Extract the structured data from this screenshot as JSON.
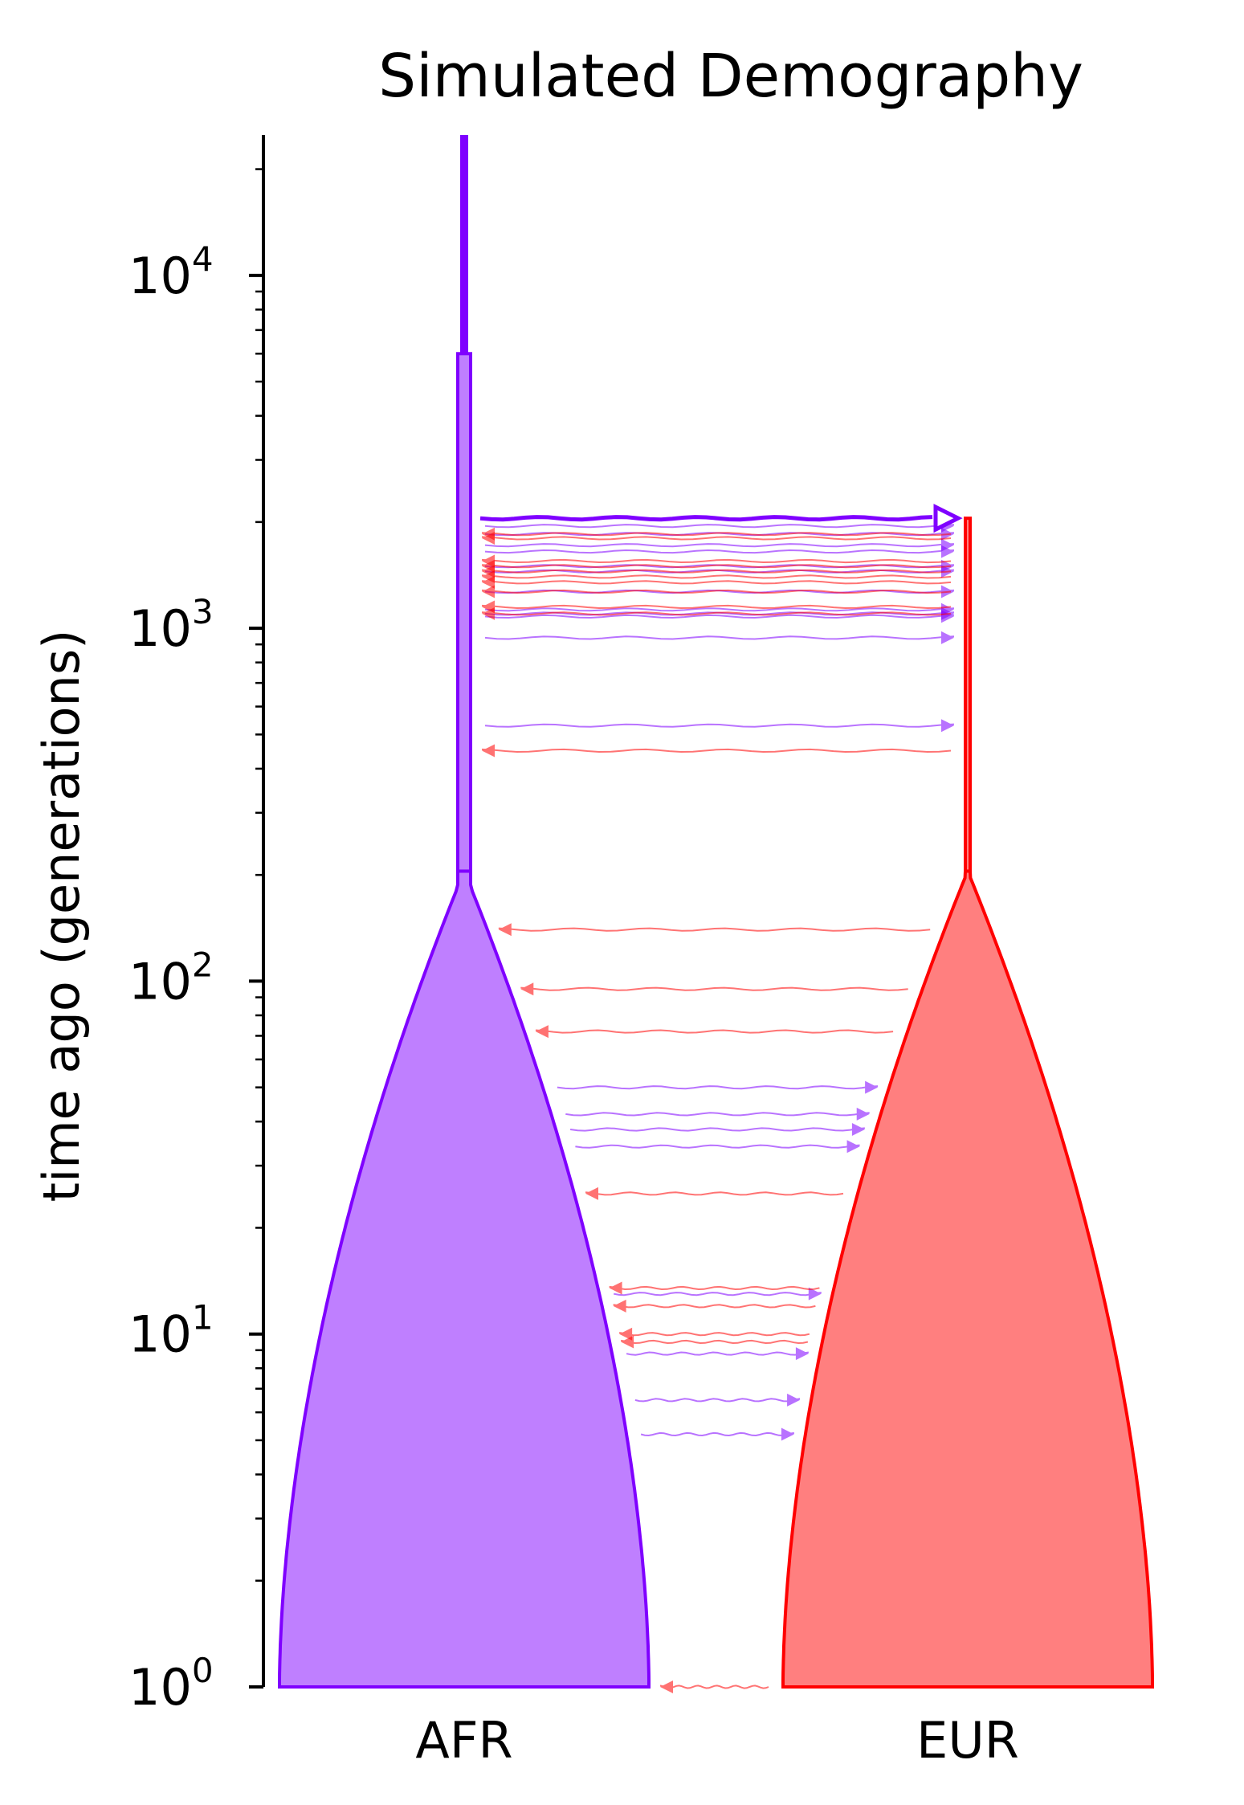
{
  "chart_data": {
    "type": "demography",
    "title": "Simulated Demography",
    "ylabel": "time ago (generations)",
    "yscale": "log",
    "ylim": [
      1,
      25000
    ],
    "yticks": [
      {
        "value": 1,
        "base": "10",
        "exp": "0"
      },
      {
        "value": 10,
        "base": "10",
        "exp": "1"
      },
      {
        "value": 100,
        "base": "10",
        "exp": "2"
      },
      {
        "value": 1000,
        "base": "10",
        "exp": "3"
      },
      {
        "value": 10000,
        "base": "10",
        "exp": "4"
      }
    ],
    "grid": false,
    "populations": [
      {
        "name": "AFR",
        "color": "#7f00ff",
        "fill": "#bf7fff",
        "start_time": 6000,
        "growth_start": 205,
        "ancestral_until": 25000
      },
      {
        "name": "EUR",
        "color": "#ff0000",
        "fill": "#ff7f7f",
        "start_time": 2050,
        "growth_start": 205
      }
    ],
    "split": {
      "time": 2050,
      "from": "AFR",
      "to": "EUR"
    },
    "migrations_afr_to_eur": [
      1950,
      1850,
      1720,
      1650,
      1500,
      1450,
      1270,
      1130,
      1100,
      1080,
      940,
      530,
      50,
      42,
      38,
      34,
      13,
      8.8,
      6.5,
      5.2
    ],
    "migrations_eur_to_afr": [
      1850,
      1800,
      1550,
      1500,
      1450,
      1400,
      1350,
      1270,
      1150,
      1100,
      450,
      140,
      95,
      72,
      25,
      13.5,
      12,
      10,
      9.5,
      1
    ]
  }
}
